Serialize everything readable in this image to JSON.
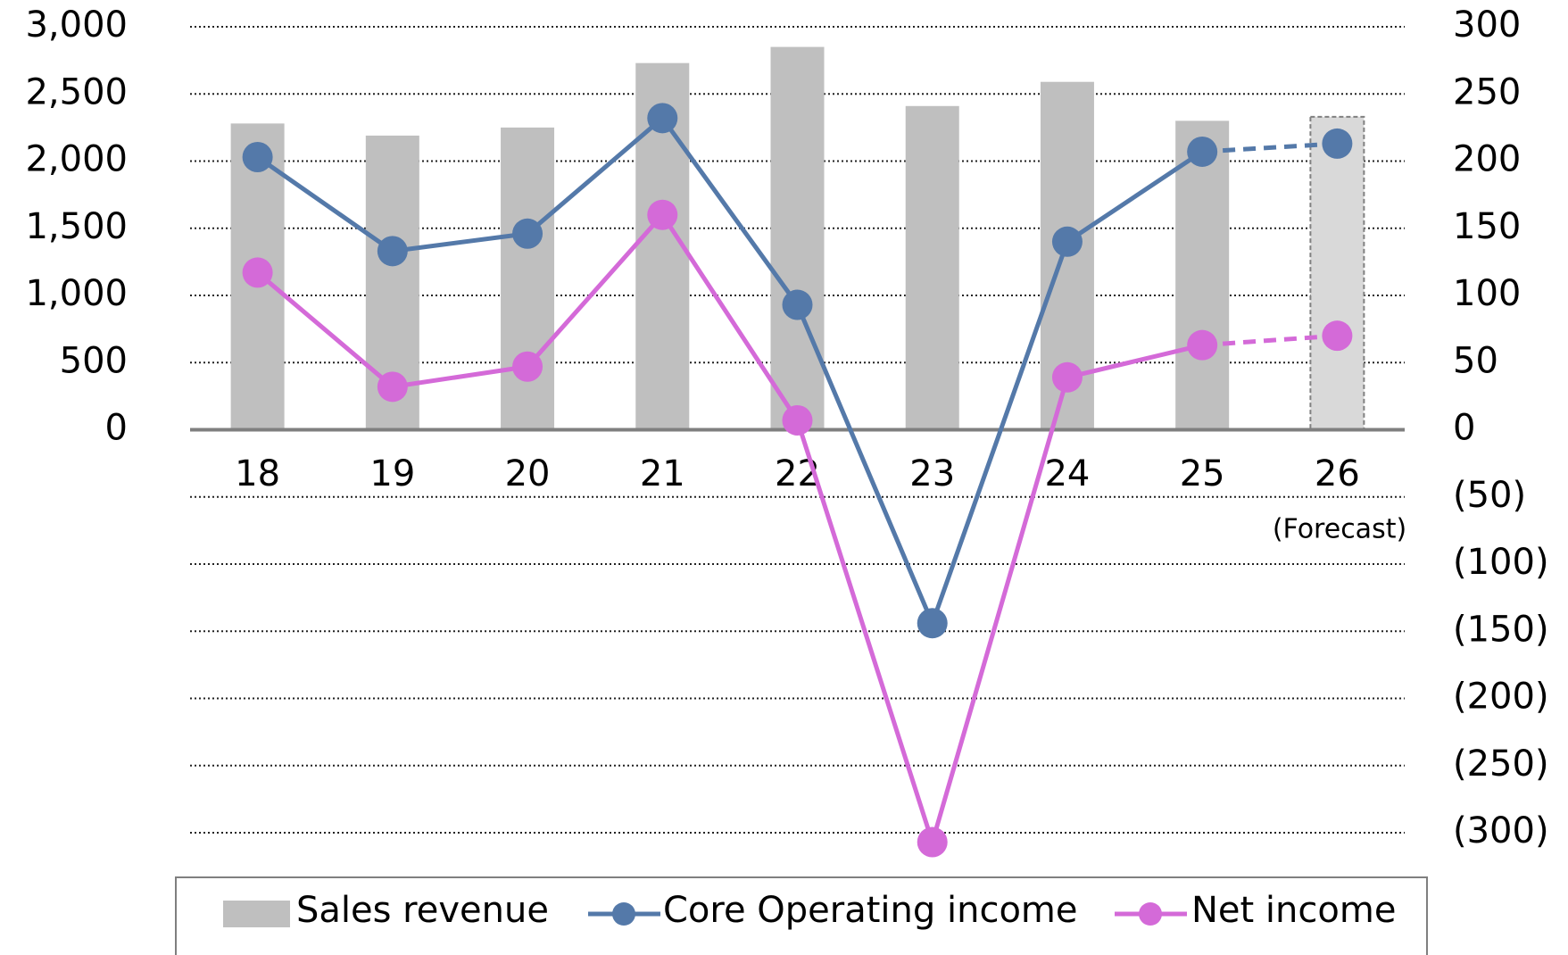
{
  "chart_data": {
    "type": "bar_line",
    "categories": [
      "18",
      "19",
      "20",
      "21",
      "22",
      "23",
      "24",
      "25",
      "26"
    ],
    "forecast_index": 8,
    "forecast_label": "(Forecast)",
    "series": [
      {
        "name": "Sales revenue",
        "type": "bar",
        "axis": "y",
        "color": "#bfbfbf",
        "forecast_color": "#d9d9d9",
        "values": [
          2280,
          2190,
          2250,
          2730,
          2850,
          2410,
          2590,
          2300,
          2330
        ]
      },
      {
        "name": "Core Operating income",
        "type": "line",
        "axis": "y2",
        "color": "#5479a9",
        "values": [
          203,
          133,
          146,
          232,
          93,
          -144,
          140,
          207,
          213
        ]
      },
      {
        "name": "Net income",
        "type": "line",
        "axis": "y2",
        "color": "#d46ad8",
        "values": [
          117,
          32,
          47,
          160,
          7,
          -307,
          39,
          63,
          70
        ]
      }
    ],
    "ylim": [
      -3000,
      3000
    ],
    "yticks": [
      0,
      500,
      {
        "value": 1000,
        "label": "1,000"
      },
      {
        "value": 1500,
        "label": "1,500"
      },
      {
        "value": 2000,
        "label": "2,000"
      },
      {
        "value": 2500,
        "label": "2,500"
      },
      {
        "value": 3000,
        "label": "3,000"
      }
    ],
    "y2lim": [
      -300,
      300
    ],
    "y2ticks": [
      {
        "value": -300,
        "label": "(300)"
      },
      {
        "value": -250,
        "label": "(250)"
      },
      {
        "value": -200,
        "label": "(200)"
      },
      {
        "value": -150,
        "label": "(150)"
      },
      {
        "value": -100,
        "label": "(100)"
      },
      {
        "value": -50,
        "label": "(50)"
      },
      0,
      50,
      100,
      150,
      200,
      250,
      300
    ],
    "grid": true,
    "legend": "bottom"
  }
}
